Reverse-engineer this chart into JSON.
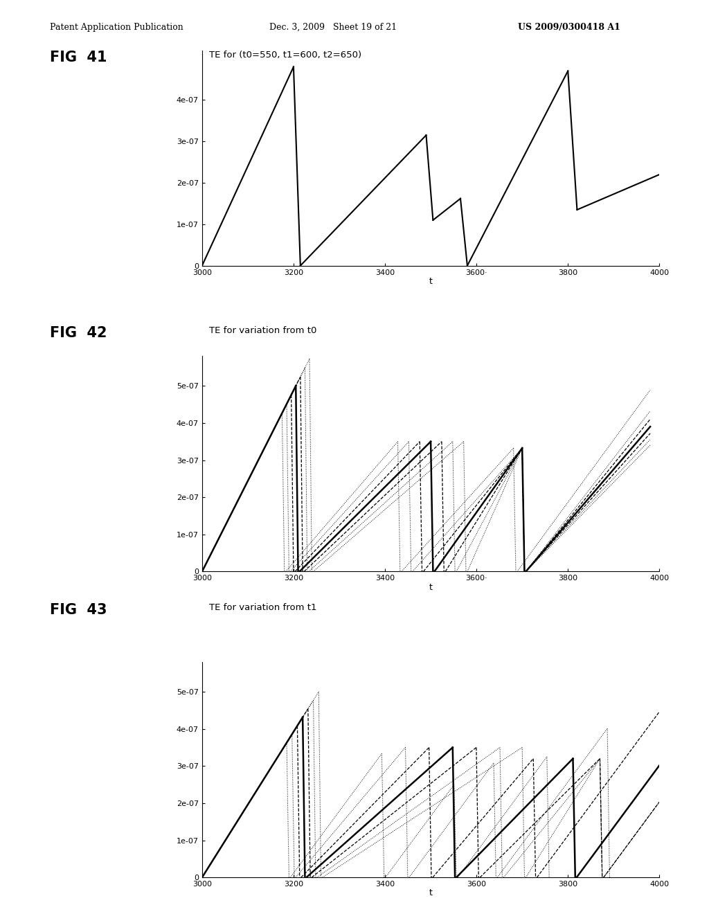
{
  "header_left": "Patent Application Publication",
  "header_mid": "Dec. 3, 2009   Sheet 19 of 21",
  "header_right": "US 2009/0300418 A1",
  "fig41_label": "FIG  41",
  "fig41_title": "TE for (t0=550, t1=600, t2=650)",
  "fig42_label": "FIG  42",
  "fig42_title": "TE for variation from t0",
  "fig43_label": "FIG  43",
  "fig43_title": "TE for variation from t1",
  "xlabel": "t",
  "xlim": [
    3000,
    4000
  ],
  "xticks": [
    3000,
    3200,
    3400,
    3600,
    3800,
    4000
  ],
  "fig41_yticks": [
    0,
    1e-07,
    2e-07,
    3e-07,
    4e-07
  ],
  "fig41_ylim": [
    0,
    5.2e-07
  ],
  "fig4243_yticks": [
    0,
    1e-07,
    2e-07,
    3e-07,
    4e-07,
    5e-07
  ],
  "fig4243_ylim": [
    0,
    5.8e-07
  ],
  "background": "#ffffff",
  "line_color": "#000000",
  "n_variations": 7
}
